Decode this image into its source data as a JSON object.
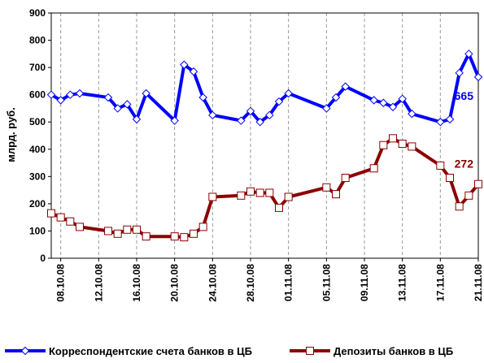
{
  "chart_data": {
    "type": "line",
    "ylabel": "млрд. руб.",
    "ylim": [
      0,
      900
    ],
    "yticks": [
      "0",
      "100",
      "200",
      "300",
      "400",
      "500",
      "600",
      "700",
      "800",
      "900"
    ],
    "x": [
      "07.10.08",
      "08.10.08",
      "09.10.08",
      "10.10.08",
      "13.10.08",
      "14.10.08",
      "15.10.08",
      "16.10.08",
      "17.10.08",
      "20.10.08",
      "21.10.08",
      "22.10.08",
      "23.10.08",
      "24.10.08",
      "27.10.08",
      "28.10.08",
      "29.10.08",
      "30.10.08",
      "31.10.08",
      "01.11.08",
      "05.11.08",
      "06.11.08",
      "07.11.08",
      "10.11.08",
      "11.11.08",
      "12.11.08",
      "13.11.08",
      "14.11.08",
      "17.11.08",
      "18.11.08",
      "19.11.08",
      "20.11.08",
      "21.11.08"
    ],
    "xtick_labels": [
      "08.10.08",
      "12.10.08",
      "16.10.08",
      "20.10.08",
      "24.10.08",
      "28.10.08",
      "01.11.08",
      "05.11.08",
      "09.11.08",
      "13.11.08",
      "17.11.08",
      "21.11.08"
    ],
    "grid": "vertical-dashed",
    "legend_position": "bottom",
    "series": [
      {
        "name": "Корреспондентские счета банков в ЦБ",
        "color": "#0000ff",
        "marker": "diamond",
        "values": [
          600,
          580,
          600,
          605,
          590,
          550,
          565,
          510,
          605,
          505,
          710,
          685,
          590,
          525,
          505,
          540,
          500,
          525,
          575,
          605,
          550,
          590,
          630,
          580,
          570,
          555,
          585,
          530,
          500,
          510,
          680,
          750,
          665
        ],
        "end_label": "665"
      },
      {
        "name": "Депозиты банков в ЦБ",
        "color": "#8b0000",
        "marker": "square",
        "values": [
          165,
          150,
          135,
          115,
          100,
          90,
          105,
          105,
          80,
          80,
          77,
          90,
          115,
          225,
          230,
          245,
          240,
          240,
          185,
          225,
          260,
          235,
          295,
          330,
          415,
          440,
          420,
          410,
          340,
          295,
          190,
          230,
          272
        ],
        "end_label": "272"
      }
    ]
  }
}
